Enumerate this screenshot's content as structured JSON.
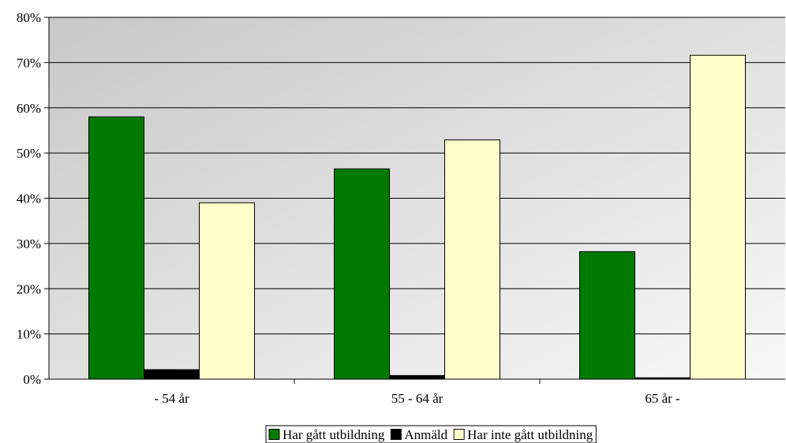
{
  "chart_data": {
    "type": "bar",
    "categories": [
      "- 54 år",
      "55 - 64 år",
      "65 år -"
    ],
    "series": [
      {
        "name": "Har gått utbildning",
        "values": [
          58.0,
          46.5,
          28.2
        ],
        "color": "#007A00"
      },
      {
        "name": "Anmäld",
        "values": [
          2.1,
          0.8,
          0.3
        ],
        "color": "#000000"
      },
      {
        "name": "Har inte gått utbildning",
        "values": [
          39.0,
          52.9,
          71.6
        ],
        "color": "#FFFFCC"
      }
    ],
    "y_ticks": [
      "0%",
      "10%",
      "20%",
      "30%",
      "40%",
      "50%",
      "60%",
      "70%",
      "80%"
    ],
    "ylim": [
      0,
      80
    ],
    "y_unit": "%",
    "grid": true,
    "legend_position": "bottom",
    "title": "",
    "xlabel": "",
    "ylabel": "",
    "background": {
      "gradient_from": "#c8c8c8",
      "gradient_to": "#f8f8f8"
    }
  }
}
